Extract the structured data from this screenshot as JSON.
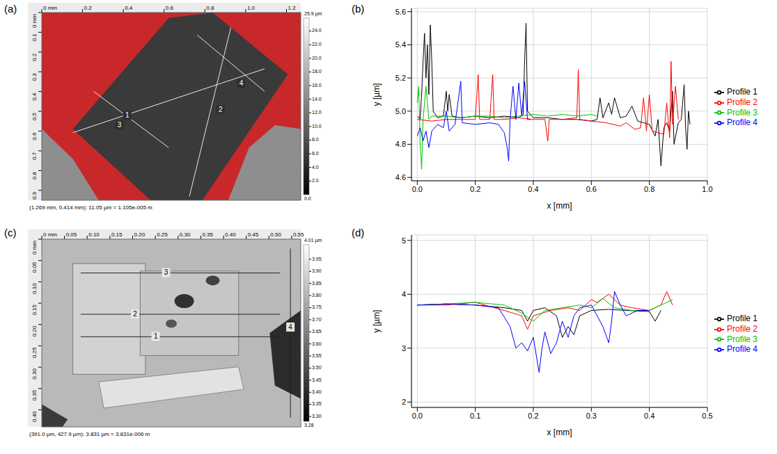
{
  "chart_data": [
    {
      "panel": "(a)",
      "type": "heightmap",
      "xlim": [
        0,
        1.27
      ],
      "xticks": [
        {
          "value": 0,
          "label": "0 mm"
        },
        0.2,
        0.4,
        0.6,
        0.8,
        {
          "value": 1,
          "label": "1.0"
        },
        1.2
      ],
      "ylim": [
        0,
        0.95
      ],
      "yticks": [
        {
          "value": 0,
          "label": "0 mm"
        },
        0.1,
        0.2,
        0.3,
        0.4,
        0.5,
        0.6,
        0.7,
        0.8,
        0.9
      ],
      "colorbar_range": [
        {
          "value": 0,
          "label": "0.0"
        },
        {
          "value": 25.9,
          "label": "25.9 µm"
        }
      ],
      "colorbar_ticks": [
        {
          "value": 2,
          "label": "2.0"
        },
        {
          "value": 4,
          "label": "4.0"
        },
        {
          "value": 6,
          "label": "6.0"
        },
        {
          "value": 8,
          "label": "8.0"
        },
        {
          "value": 10,
          "label": "10.0"
        },
        {
          "value": 12,
          "label": "12.0"
        },
        {
          "value": 14,
          "label": "14.0"
        },
        {
          "value": 16,
          "label": "16.0"
        },
        {
          "value": 18,
          "label": "18.0"
        },
        {
          "value": 20,
          "label": "20.0"
        },
        {
          "value": 22,
          "label": "22.0"
        },
        {
          "value": 24,
          "label": "24.0"
        }
      ],
      "status": "(1.269 mm, 0.414 mm): 11.05 µm = 1.105e-005 m",
      "profile_labels": [
        "1",
        "2",
        "3",
        "4"
      ]
    },
    {
      "panel": "(b)",
      "type": "line",
      "x_label": "x [mm]",
      "y_label": "y [µm]",
      "xlim": [
        -0.02,
        1.0
      ],
      "xticks": [
        {
          "value": 0,
          "label": "0.0"
        },
        0.2,
        0.4,
        0.6,
        0.8,
        {
          "value": 1,
          "label": "1.0"
        }
      ],
      "ylim": [
        4.58,
        5.62
      ],
      "yticks": [
        4.6,
        4.8,
        {
          "value": 5,
          "label": "5.0"
        },
        5.2,
        5.4,
        5.6
      ],
      "grid": true,
      "legend": "right",
      "series": [
        {
          "name": "Profile 1",
          "color": "#000000",
          "x": [
            0,
            0.01,
            0.015,
            0.02,
            0.025,
            0.03,
            0.035,
            0.04,
            0.045,
            0.05,
            0.055,
            0.07,
            0.09,
            0.1,
            0.105,
            0.11,
            0.12,
            0.15,
            0.2,
            0.25,
            0.3,
            0.35,
            0.365,
            0.37,
            0.375,
            0.38,
            0.4,
            0.45,
            0.5,
            0.55,
            0.6,
            0.62,
            0.63,
            0.64,
            0.66,
            0.67,
            0.68,
            0.7,
            0.72,
            0.74,
            0.76,
            0.78,
            0.8,
            0.82,
            0.83,
            0.84,
            0.85,
            0.86,
            0.87,
            0.88,
            0.885,
            0.9,
            0.91,
            0.92,
            0.925,
            0.93,
            0.935,
            0.94
          ],
          "values": [
            4.97,
            4.95,
            5.1,
            5.3,
            5.47,
            5.2,
            5.4,
            5.1,
            5.52,
            5.3,
            5.0,
            4.96,
            4.97,
            5.12,
            5.0,
            5.1,
            4.97,
            4.96,
            4.97,
            4.96,
            4.97,
            4.96,
            4.98,
            5.3,
            5.53,
            5.0,
            4.96,
            4.96,
            4.95,
            4.95,
            4.94,
            4.95,
            5.08,
            4.96,
            5.05,
            4.98,
            5.08,
            4.96,
            4.97,
            5.03,
            4.94,
            4.93,
            4.92,
            4.85,
            4.95,
            4.67,
            4.9,
            4.93,
            4.88,
            5.12,
            4.8,
            4.93,
            4.95,
            5.16,
            4.9,
            4.77,
            5.0,
            4.92
          ]
        },
        {
          "name": "Profile 2",
          "color": "#ff0000",
          "x": [
            0,
            0.05,
            0.1,
            0.15,
            0.2,
            0.21,
            0.215,
            0.25,
            0.26,
            0.265,
            0.3,
            0.35,
            0.4,
            0.44,
            0.45,
            0.455,
            0.5,
            0.55,
            0.555,
            0.56,
            0.6,
            0.65,
            0.7,
            0.72,
            0.75,
            0.77,
            0.78,
            0.79,
            0.8,
            0.81,
            0.83,
            0.85,
            0.86,
            0.87,
            0.875,
            0.88,
            0.89,
            0.9
          ],
          "values": [
            4.95,
            4.94,
            4.95,
            4.95,
            4.95,
            5.22,
            4.95,
            4.95,
            5.22,
            4.95,
            4.95,
            4.96,
            4.95,
            4.95,
            4.82,
            4.95,
            4.95,
            4.96,
            5.25,
            4.95,
            4.94,
            4.93,
            4.91,
            4.93,
            4.89,
            4.9,
            5.08,
            4.88,
            5.1,
            4.88,
            4.87,
            4.86,
            5.05,
            4.84,
            5.3,
            4.92,
            5.15,
            4.95
          ]
        },
        {
          "name": "Profile 3",
          "color": "#00c000",
          "x": [
            0,
            0.005,
            0.01,
            0.015,
            0.02,
            0.03,
            0.04,
            0.05,
            0.1,
            0.15,
            0.2,
            0.25,
            0.3,
            0.35,
            0.4,
            0.45,
            0.5,
            0.55,
            0.6,
            0.62
          ],
          "values": [
            5.05,
            5.15,
            4.8,
            4.65,
            4.95,
            5.15,
            4.95,
            4.97,
            4.97,
            4.96,
            4.97,
            4.97,
            4.96,
            4.97,
            4.98,
            4.97,
            4.98,
            4.97,
            4.98,
            4.97
          ]
        },
        {
          "name": "Profile 4",
          "color": "#0000ff",
          "x": [
            0,
            0.01,
            0.02,
            0.03,
            0.04,
            0.05,
            0.07,
            0.09,
            0.1,
            0.11,
            0.13,
            0.15,
            0.155,
            0.2,
            0.25,
            0.28,
            0.3,
            0.31,
            0.315,
            0.32,
            0.33,
            0.34,
            0.35,
            0.36,
            0.37,
            0.38,
            0.39
          ],
          "values": [
            4.85,
            4.9,
            4.82,
            4.88,
            4.78,
            4.88,
            4.92,
            4.9,
            5.0,
            4.88,
            4.92,
            5.18,
            4.93,
            4.92,
            4.93,
            4.92,
            4.87,
            4.78,
            4.7,
            4.95,
            5.15,
            4.95,
            5.17,
            4.97,
            5.18,
            4.95,
            4.95
          ]
        }
      ]
    },
    {
      "panel": "(c)",
      "type": "heightmap",
      "xlim": [
        0,
        0.57
      ],
      "xticks": [
        {
          "value": 0,
          "label": "0 mm"
        },
        0.05,
        {
          "value": 0.1,
          "label": "0.10"
        },
        0.15,
        {
          "value": 0.2,
          "label": "0.20"
        },
        0.25,
        {
          "value": 0.3,
          "label": "0.30"
        },
        0.35,
        {
          "value": 0.4,
          "label": "0.40"
        },
        0.45,
        {
          "value": 0.5,
          "label": "0.50"
        },
        0.55
      ],
      "ylim": [
        0,
        0.44
      ],
      "yticks": [
        {
          "value": 0,
          "label": "0 mm"
        },
        0.05,
        {
          "value": 0.1,
          "label": "0.10"
        },
        0.15,
        {
          "value": 0.2,
          "label": "0.20"
        },
        0.25,
        {
          "value": 0.3,
          "label": "0.30"
        },
        0.35,
        {
          "value": 0.4,
          "label": "0.40"
        }
      ],
      "colorbar_range": [
        3.28,
        {
          "value": 4.01,
          "label": "4.01 µm"
        }
      ],
      "colorbar_ticks": [
        {
          "value": 3.3,
          "label": "3.30"
        },
        3.35,
        {
          "value": 3.4,
          "label": "3.40"
        },
        3.45,
        {
          "value": 3.5,
          "label": "3.50"
        },
        3.55,
        {
          "value": 3.6,
          "label": "3.60"
        },
        3.65,
        {
          "value": 3.7,
          "label": "3.70"
        },
        3.75,
        {
          "value": 3.8,
          "label": "3.80"
        },
        3.85,
        {
          "value": 3.9,
          "label": "3.90"
        },
        3.95
      ],
      "status": "(391.0 µm, 427.9 µm): 3.831 µm = 3.831e-006 m",
      "profile_labels": [
        "1",
        "2",
        "3",
        "4"
      ]
    },
    {
      "panel": "(d)",
      "type": "line",
      "x_label": "x [mm]",
      "y_label": "y [µm]",
      "xlim": [
        -0.01,
        0.5
      ],
      "xticks": [
        {
          "value": 0,
          "label": "0.0"
        },
        0.1,
        0.2,
        0.3,
        0.4,
        0.5
      ],
      "ylim": [
        1.9,
        5.1
      ],
      "yticks": [
        2,
        3,
        4,
        5
      ],
      "grid": true,
      "legend": "right",
      "series": [
        {
          "name": "Profile 1",
          "color": "#000000",
          "x": [
            0,
            0.05,
            0.1,
            0.15,
            0.18,
            0.19,
            0.2,
            0.22,
            0.24,
            0.25,
            0.26,
            0.27,
            0.28,
            0.3,
            0.33,
            0.36,
            0.4,
            0.41,
            0.42
          ],
          "values": [
            3.8,
            3.82,
            3.8,
            3.75,
            3.7,
            3.5,
            3.7,
            3.75,
            3.6,
            3.2,
            3.4,
            3.25,
            3.6,
            3.7,
            3.72,
            3.7,
            3.68,
            3.5,
            3.7
          ]
        },
        {
          "name": "Profile 2",
          "color": "#ff0000",
          "x": [
            0,
            0.05,
            0.1,
            0.15,
            0.18,
            0.19,
            0.2,
            0.23,
            0.26,
            0.28,
            0.3,
            0.31,
            0.33,
            0.35,
            0.37,
            0.4,
            0.42,
            0.43,
            0.44
          ],
          "values": [
            3.8,
            3.8,
            3.85,
            3.7,
            3.6,
            3.35,
            3.6,
            3.7,
            3.75,
            3.7,
            3.9,
            3.85,
            4.0,
            3.8,
            3.75,
            3.7,
            3.8,
            4.05,
            3.8
          ]
        },
        {
          "name": "Profile 3",
          "color": "#00c000",
          "x": [
            0,
            0.05,
            0.1,
            0.15,
            0.18,
            0.2,
            0.22,
            0.25,
            0.28,
            0.3,
            0.32,
            0.34,
            0.37,
            0.4,
            0.42,
            0.44
          ],
          "values": [
            3.8,
            3.82,
            3.85,
            3.8,
            3.65,
            3.5,
            3.7,
            3.75,
            3.8,
            3.75,
            3.92,
            3.75,
            3.7,
            3.7,
            3.8,
            3.9
          ]
        },
        {
          "name": "Profile 4",
          "color": "#0000ff",
          "x": [
            0,
            0.05,
            0.1,
            0.14,
            0.16,
            0.17,
            0.18,
            0.19,
            0.2,
            0.21,
            0.215,
            0.22,
            0.23,
            0.24,
            0.25,
            0.26,
            0.27,
            0.28,
            0.3,
            0.31,
            0.32,
            0.33,
            0.335,
            0.34,
            0.35,
            0.36,
            0.38,
            0.4
          ],
          "values": [
            3.8,
            3.82,
            3.8,
            3.75,
            3.4,
            3.0,
            3.1,
            2.95,
            3.2,
            2.55,
            3.0,
            3.3,
            2.9,
            3.1,
            3.5,
            3.2,
            3.6,
            3.75,
            3.8,
            3.6,
            3.4,
            3.1,
            3.5,
            4.05,
            3.8,
            3.6,
            3.7,
            3.7
          ]
        }
      ]
    }
  ]
}
